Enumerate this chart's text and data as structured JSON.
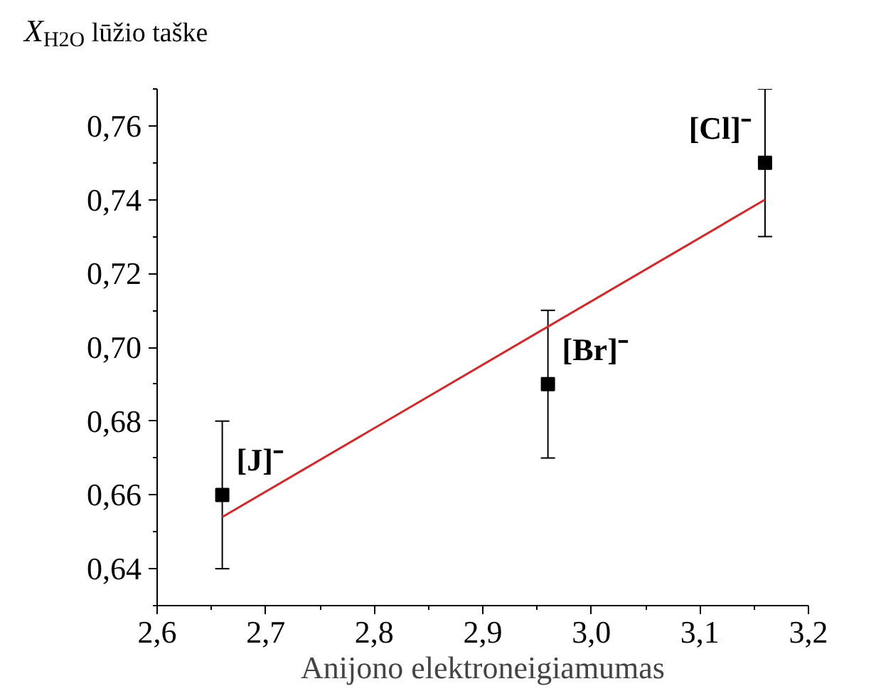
{
  "chart_data": {
    "type": "scatter",
    "xlabel": "Anijono elektroneigiamumas",
    "ylabel": "X$_{H2O}$ lūžio taške",
    "xlim": [
      2.6,
      3.2
    ],
    "ylim": [
      0.63,
      0.77
    ],
    "xticks": [
      {
        "value": 2.6,
        "label": "2,6"
      },
      {
        "value": 2.7,
        "label": "2,7"
      },
      {
        "value": 2.8,
        "label": "2,8"
      },
      {
        "value": 2.9,
        "label": "2,9"
      },
      {
        "value": 3.0,
        "label": "3,0"
      },
      {
        "value": 3.1,
        "label": "3,1"
      },
      {
        "value": 3.2,
        "label": "3,2"
      }
    ],
    "yticks": [
      {
        "value": 0.64,
        "label": "0,64"
      },
      {
        "value": 0.66,
        "label": "0,66"
      },
      {
        "value": 0.68,
        "label": "0,68"
      },
      {
        "value": 0.7,
        "label": "0,70"
      },
      {
        "value": 0.72,
        "label": "0,72"
      },
      {
        "value": 0.74,
        "label": "0,74"
      },
      {
        "value": 0.76,
        "label": "0,76"
      }
    ],
    "grid": false,
    "marker": "square",
    "series": [
      {
        "color": "#000000",
        "x": [
          2.66,
          2.96,
          3.16
        ],
        "values": [
          0.66,
          0.69,
          0.75
        ],
        "errors": [
          0.02,
          0.02,
          0.02
        ]
      },
      {
        "type": "line",
        "color": "#d62728",
        "x": [
          2.66,
          3.16
        ],
        "values": [
          0.654,
          0.74
        ],
        "marker": "none"
      }
    ],
    "annotations": [
      {
        "text": "[J]⁻",
        "x": 2.66,
        "y": 0.66
      },
      {
        "text": "[Br]⁻",
        "x": 2.96,
        "y": 0.69
      },
      {
        "text": "[Cl]⁻",
        "x": 3.16,
        "y": 0.75
      }
    ]
  }
}
